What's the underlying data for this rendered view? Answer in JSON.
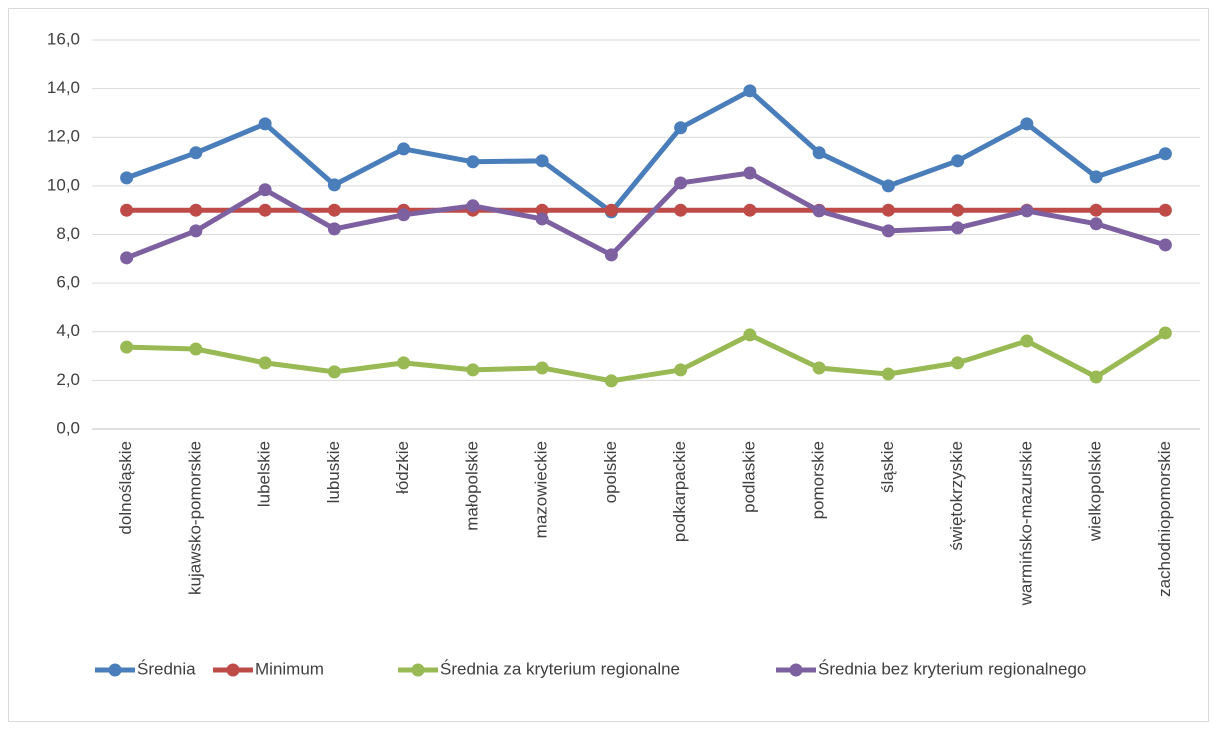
{
  "chart_data": {
    "type": "line",
    "categories": [
      "dolnośląskie",
      "kujawsko-pomorskie",
      "lubelskie",
      "lubuskie",
      "łódzkie",
      "małopolskie",
      "mazowieckie",
      "opolskie",
      "podkarpackie",
      "podlaskie",
      "pomorskie",
      "śląskie",
      "świętokrzyskie",
      "warmińsko-mazurskie",
      "wielkopolskie",
      "zachodniopomorskie"
    ],
    "series": [
      {
        "name": "Średnia",
        "color": "#4a7ebb",
        "values": [
          10.33,
          11.36,
          12.55,
          10.04,
          11.52,
          10.99,
          11.03,
          8.93,
          12.39,
          13.91,
          11.36,
          10.0,
          11.03,
          12.55,
          10.37,
          11.32
        ]
      },
      {
        "name": "Minimum",
        "color": "#be4b48",
        "values": [
          9,
          9,
          9,
          9,
          9,
          9,
          9,
          9,
          9,
          9,
          9,
          9,
          9,
          9,
          9,
          9
        ]
      },
      {
        "name": "Średnia za kryterium regionalne",
        "color": "#98b954",
        "values": [
          3.37,
          3.29,
          2.72,
          2.35,
          2.72,
          2.43,
          2.51,
          1.98,
          2.43,
          3.87,
          2.51,
          2.26,
          2.72,
          3.62,
          2.14,
          3.95
        ]
      },
      {
        "name": "Średnia bez kryterium regionalnego",
        "color": "#7d60a0",
        "values": [
          7.04,
          8.15,
          9.84,
          8.23,
          8.81,
          9.18,
          8.64,
          7.16,
          10.12,
          10.53,
          8.97,
          8.15,
          8.27,
          8.97,
          8.44,
          7.57
        ]
      }
    ],
    "ylim": [
      0,
      16
    ],
    "yticks": [
      {
        "value": 0,
        "label": "0,0"
      },
      {
        "value": 2,
        "label": "2,0"
      },
      {
        "value": 4,
        "label": "4,0"
      },
      {
        "value": 6,
        "label": "6,0"
      },
      {
        "value": 8,
        "label": "8,0"
      },
      {
        "value": 10,
        "label": "10,0"
      },
      {
        "value": 12,
        "label": "12,0"
      },
      {
        "value": 14,
        "label": "14,0"
      },
      {
        "value": 16,
        "label": "16,0"
      }
    ],
    "grid": true,
    "legend": "bottom"
  }
}
